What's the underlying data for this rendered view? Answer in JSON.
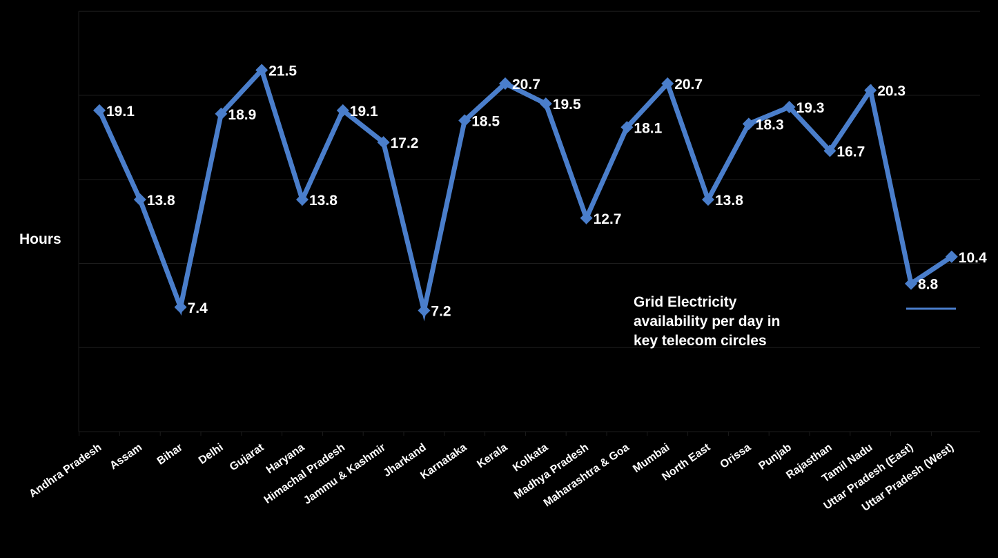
{
  "chart_data": {
    "type": "line",
    "ylabel": "Hours",
    "legend_text": [
      "Grid Electricity",
      "availability per day in",
      "key telecom circles"
    ],
    "legend_placement": "bottom-right",
    "grid": true,
    "ylim": [
      0,
      25
    ],
    "categories": [
      "Andhra Pradesh",
      "Assam",
      "Bihar",
      "Delhi",
      "Gujarat",
      "Haryana",
      "Himachal Pradesh",
      "Jammu & Kashmir",
      "Jharkand",
      "Karnataka",
      "Kerala",
      "Kolkata",
      "Madhya Pradesh",
      "Maharashtra & Goa",
      "Mumbai",
      "North East",
      "Orissa",
      "Punjab",
      "Rajasthan",
      "Tamil Nadu",
      "Uttar Pradesh (East)",
      "Uttar Pradesh (West)"
    ],
    "series": [
      {
        "values": [
          19.1,
          13.8,
          7.4,
          18.9,
          21.5,
          13.8,
          19.1,
          17.2,
          7.2,
          18.5,
          20.7,
          19.5,
          12.7,
          18.1,
          20.7,
          13.8,
          18.3,
          19.3,
          16.7,
          20.3,
          8.8,
          10.4
        ],
        "labels": [
          "19.1",
          "13.8",
          "7.4",
          "18.9",
          "21.5",
          "13.8",
          "19.1",
          "17.2",
          "7.2",
          "18.5",
          "20.7",
          "19.5",
          "12.7",
          "18.1",
          "20.7",
          "13.8",
          "18.3",
          "19.3",
          "16.7",
          "20.3",
          "8.8",
          "10.4"
        ]
      }
    ],
    "colors": {
      "line": "#4a7ecb",
      "background": "#000000",
      "text": "#ffffff",
      "grid": "#1c1c1c"
    }
  }
}
